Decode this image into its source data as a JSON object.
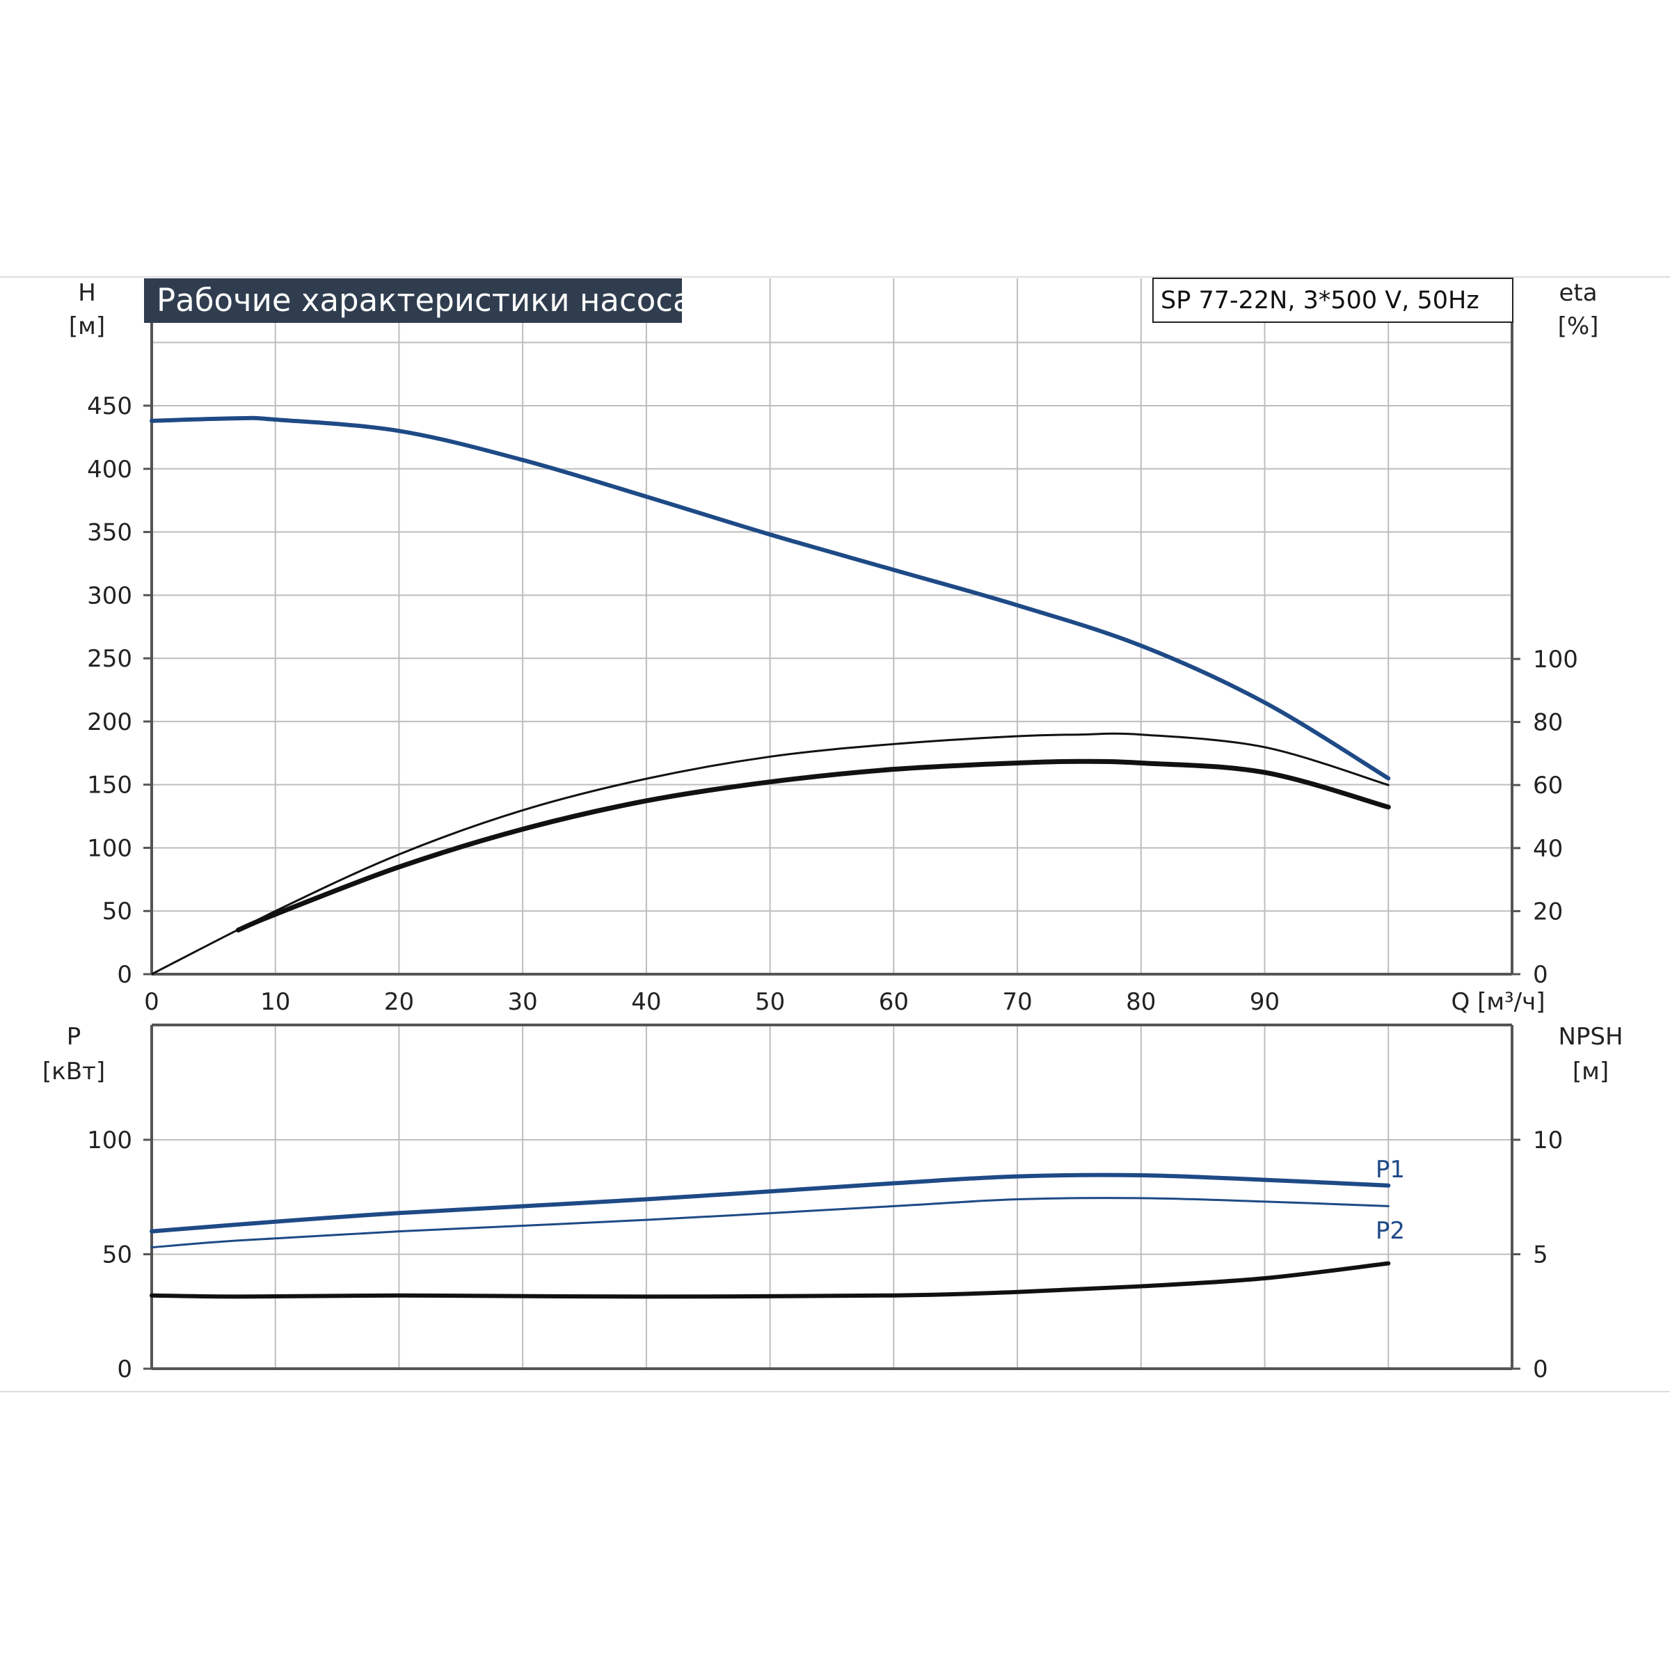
{
  "title": "Рабочие характеристики насоса",
  "model": "SP 77-22N, 3*500 V, 50Hz",
  "colors": {
    "blue": "#1e4a86",
    "black": "#111111",
    "grid": "#bdbdbd",
    "axis": "#555555",
    "title_bg": "#2f3d4f"
  },
  "chart_data": [
    {
      "type": "line",
      "panel": "top",
      "xlabel": "Q [м³/ч]",
      "x_ticks": [
        "0",
        "10",
        "20",
        "30",
        "40",
        "50",
        "60",
        "70",
        "80",
        "90"
      ],
      "xlim": [
        0,
        110
      ],
      "ylabel": "H",
      "ylabel_unit": "[м]",
      "ylim": [
        0,
        450
      ],
      "y_ticks": [
        "0",
        "50",
        "100",
        "150",
        "200",
        "250",
        "300",
        "350",
        "400",
        "450"
      ],
      "y2label": "eta",
      "y2label_unit": "[%]",
      "y2lim": [
        0,
        100
      ],
      "y2_ticks": [
        "0",
        "20",
        "40",
        "60",
        "80",
        "100"
      ],
      "grid": true,
      "series": [
        {
          "role": "H",
          "axis": "left",
          "color": "#1e4a86",
          "stroke": 6,
          "x": [
            0,
            7,
            10,
            20,
            30,
            40,
            50,
            60,
            70,
            80,
            90,
            100
          ],
          "y": [
            438,
            440,
            439,
            430,
            407,
            378,
            348,
            320,
            292,
            260,
            215,
            155
          ]
        },
        {
          "role": "eta-thin",
          "axis": "right",
          "color": "#111111",
          "stroke": 3,
          "x": [
            0,
            10,
            20,
            30,
            40,
            50,
            60,
            70,
            75,
            80,
            90,
            100
          ],
          "y": [
            0,
            20,
            38,
            52,
            62,
            69,
            73,
            75.5,
            76,
            76,
            72,
            60
          ]
        },
        {
          "role": "eta-thick",
          "axis": "right",
          "color": "#111111",
          "stroke": 7,
          "x": [
            7,
            10,
            20,
            30,
            40,
            50,
            60,
            70,
            75,
            80,
            90,
            100
          ],
          "y": [
            14,
            19,
            34,
            46,
            55,
            61,
            65,
            67,
            67.5,
            67,
            64,
            53
          ]
        }
      ]
    },
    {
      "type": "line",
      "panel": "bottom",
      "ylabel": "P",
      "ylabel_unit": "[кВт]",
      "ylim": [
        0,
        150
      ],
      "y_ticks": [
        "0",
        "50",
        "100"
      ],
      "y2label": "NPSH",
      "y2label_unit": "[м]",
      "y2lim": [
        0,
        15
      ],
      "y2_ticks": [
        "0",
        "5",
        "10"
      ],
      "grid": true,
      "series": [
        {
          "name": "P1",
          "axis": "left",
          "color": "#1e4a86",
          "stroke": 6,
          "x": [
            0,
            7,
            20,
            40,
            60,
            70,
            80,
            90,
            100
          ],
          "y": [
            60,
            63,
            68,
            74,
            81,
            84,
            84.5,
            82.5,
            80
          ]
        },
        {
          "name": "P2",
          "axis": "left",
          "color": "#1e4a86",
          "stroke": 3,
          "x": [
            0,
            7,
            20,
            40,
            60,
            70,
            80,
            90,
            100
          ],
          "y": [
            53,
            56,
            60,
            65,
            71,
            74,
            74.5,
            73,
            71
          ]
        },
        {
          "role": "NPSH",
          "axis": "right",
          "color": "#111111",
          "stroke": 6,
          "x": [
            0,
            7,
            20,
            40,
            60,
            70,
            80,
            90,
            100
          ],
          "y": [
            3.2,
            3.15,
            3.2,
            3.15,
            3.2,
            3.35,
            3.6,
            3.95,
            4.6
          ]
        }
      ]
    }
  ]
}
